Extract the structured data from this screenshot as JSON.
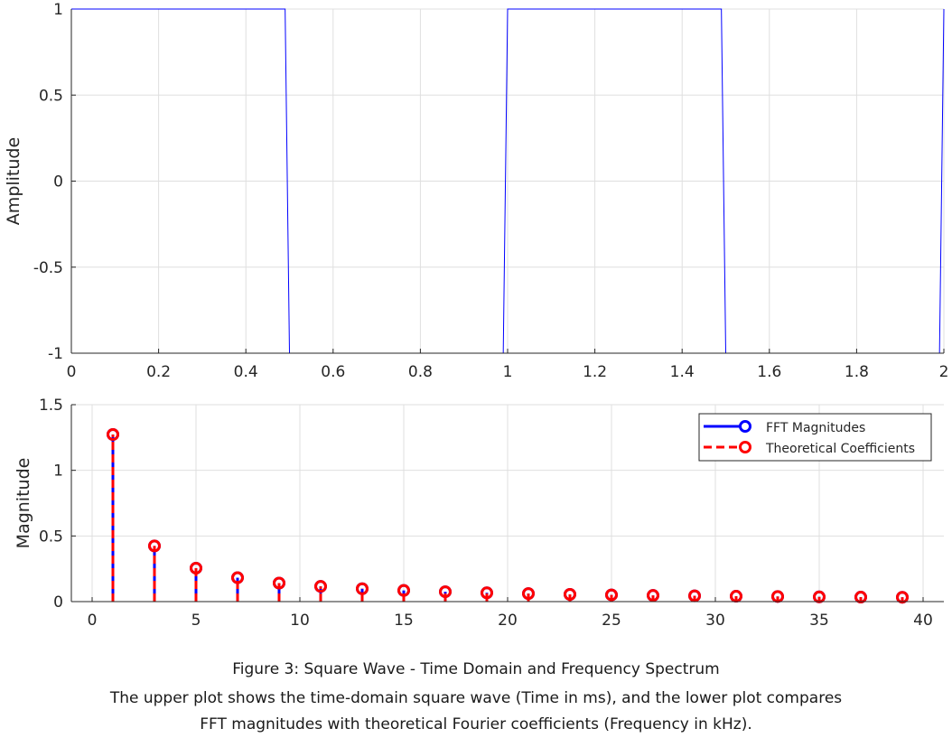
{
  "chart_data": [
    {
      "type": "line",
      "xlabel": "",
      "ylabel": "Amplitude",
      "xlim": [
        0,
        2
      ],
      "ylim": [
        -1,
        1
      ],
      "xticks": [
        "0",
        "0.2",
        "0.4",
        "0.6",
        "0.8",
        "1",
        "1.2",
        "1.4",
        "1.6",
        "1.8",
        "2"
      ],
      "yticks": [
        "-1",
        "-0.5",
        "0",
        "0.5",
        "1"
      ],
      "grid": true,
      "series": [
        {
          "color": "#0000ff",
          "x": [
            0,
            0.49,
            0.5,
            0.99,
            1.0,
            1.49,
            1.5,
            1.99,
            2.0
          ],
          "y": [
            1,
            1,
            -1,
            -1,
            1,
            1,
            -1,
            -1,
            1
          ]
        }
      ]
    },
    {
      "type": "stem",
      "xlabel": "",
      "ylabel": "Magnitude",
      "xlim": [
        -1,
        41
      ],
      "ylim": [
        0,
        1.5
      ],
      "xticks": [
        "0",
        "5",
        "10",
        "15",
        "20",
        "25",
        "30",
        "35",
        "40"
      ],
      "yticks": [
        "0",
        "0.5",
        "1",
        "1.5"
      ],
      "grid": true,
      "legend_position": "top-right",
      "series": [
        {
          "name": "FFT Magnitudes",
          "color": "#0000ff",
          "style": "solid",
          "marker": "circle",
          "x": [
            1,
            3,
            5,
            7,
            9,
            11,
            13,
            15,
            17,
            19,
            21,
            23,
            25,
            27,
            29,
            31,
            33,
            35,
            37,
            39
          ],
          "y": [
            1.273,
            0.424,
            0.255,
            0.182,
            0.141,
            0.116,
            0.098,
            0.085,
            0.075,
            0.067,
            0.061,
            0.055,
            0.051,
            0.047,
            0.044,
            0.041,
            0.039,
            0.036,
            0.034,
            0.033
          ]
        },
        {
          "name": "Theoretical Coefficients",
          "color": "#ff0000",
          "style": "dashed",
          "marker": "circle",
          "x": [
            1,
            3,
            5,
            7,
            9,
            11,
            13,
            15,
            17,
            19,
            21,
            23,
            25,
            27,
            29,
            31,
            33,
            35,
            37,
            39
          ],
          "y": [
            1.273,
            0.424,
            0.255,
            0.182,
            0.141,
            0.116,
            0.098,
            0.085,
            0.075,
            0.067,
            0.061,
            0.055,
            0.051,
            0.047,
            0.044,
            0.041,
            0.039,
            0.036,
            0.034,
            0.033
          ]
        }
      ]
    }
  ],
  "caption": {
    "title": "Figure 3: Square Wave - Time Domain and Frequency Spectrum",
    "line1": "The upper plot shows the time-domain square wave (Time in ms), and the lower plot compares",
    "line2": "FFT magnitudes with theoretical Fourier coefficients (Frequency in kHz)."
  }
}
